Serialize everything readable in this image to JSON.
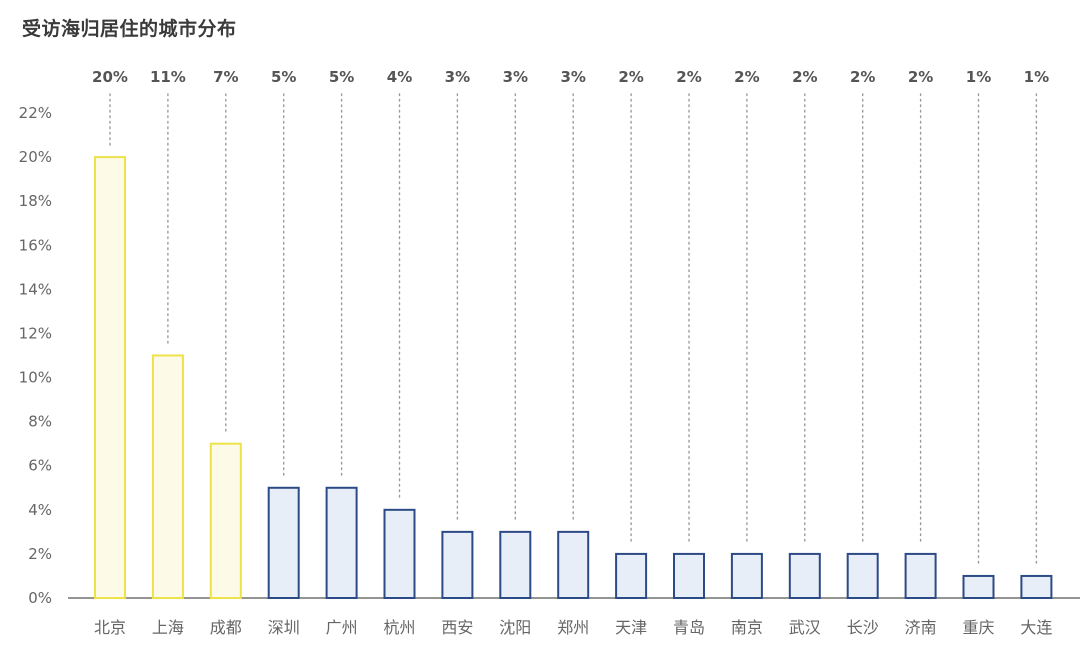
{
  "chart_data": {
    "type": "bar",
    "title": "受访海归居住的城市分布",
    "xlabel": "",
    "ylabel": "",
    "categories": [
      "北京",
      "上海",
      "成都",
      "深圳",
      "广州",
      "杭州",
      "西安",
      "沈阳",
      "郑州",
      "天津",
      "青岛",
      "南京",
      "武汉",
      "长沙",
      "济南",
      "重庆",
      "大连"
    ],
    "values": [
      20,
      11,
      7,
      5,
      5,
      4,
      3,
      3,
      3,
      2,
      2,
      2,
      2,
      2,
      2,
      1,
      1
    ],
    "data_labels": [
      "20%",
      "11%",
      "7%",
      "5%",
      "5%",
      "4%",
      "3%",
      "3%",
      "3%",
      "2%",
      "2%",
      "2%",
      "2%",
      "2%",
      "2%",
      "1%",
      "1%"
    ],
    "ylim": [
      0,
      22
    ],
    "yticks": [
      "0%",
      "2%",
      "4%",
      "6%",
      "8%",
      "10%",
      "12%",
      "14%",
      "16%",
      "18%",
      "20%",
      "22%"
    ],
    "highlight_count": 3,
    "grid": false,
    "colors": {
      "highlight_stroke": "#ede24a",
      "highlight_fill": "#fdfbe8",
      "normal_stroke": "#2c4a86",
      "normal_fill": "#e8eef7",
      "leader": "#9a9a9a",
      "axis": "#555555"
    }
  }
}
